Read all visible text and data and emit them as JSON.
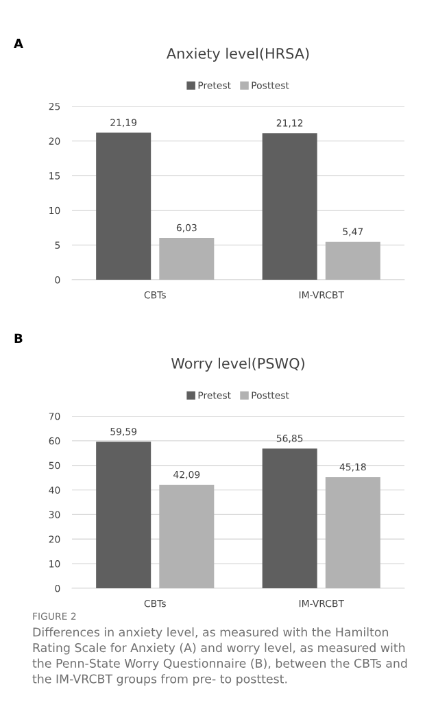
{
  "chart_data": [
    {
      "type": "bar",
      "title": "Anxiety level(HRSA)",
      "categories": [
        "CBTs",
        "IM-VRCBT"
      ],
      "series": [
        {
          "name": "Pretest",
          "color": "#5f5f5f",
          "values": [
            21.19,
            21.12
          ],
          "value_labels": [
            "21,19",
            "21,12"
          ]
        },
        {
          "name": "Posttest",
          "color": "#b2b2b2",
          "values": [
            6.03,
            5.47
          ],
          "value_labels": [
            "6,03",
            "5,47"
          ]
        }
      ],
      "ylim": [
        0,
        25
      ],
      "yticks": [
        0,
        5,
        10,
        15,
        20,
        25
      ],
      "grid": "y",
      "legend": "top",
      "annotations": [
        "A"
      ]
    },
    {
      "type": "bar",
      "title": "Worry level(PSWQ)",
      "categories": [
        "CBTs",
        "IM-VRCBT"
      ],
      "series": [
        {
          "name": "Pretest",
          "color": "#5f5f5f",
          "values": [
            59.59,
            56.85
          ],
          "value_labels": [
            "59,59",
            "56,85"
          ]
        },
        {
          "name": "Posttest",
          "color": "#b2b2b2",
          "values": [
            42.09,
            45.18
          ],
          "value_labels": [
            "42,09",
            "45,18"
          ]
        }
      ],
      "ylim": [
        0,
        70
      ],
      "yticks": [
        0,
        10,
        20,
        30,
        40,
        50,
        60,
        70
      ],
      "grid": "y",
      "legend": "top",
      "annotations": [
        "B",
        "FIGURE 2",
        "Differences in anxiety level, as measured with the Hamilton Rating Scale for Anxiety (A) and worry level, as measured with the Penn-State Worry Questionnaire (B), between the CBTs and the IM-VRCBT groups from pre- to posttest."
      ]
    }
  ]
}
